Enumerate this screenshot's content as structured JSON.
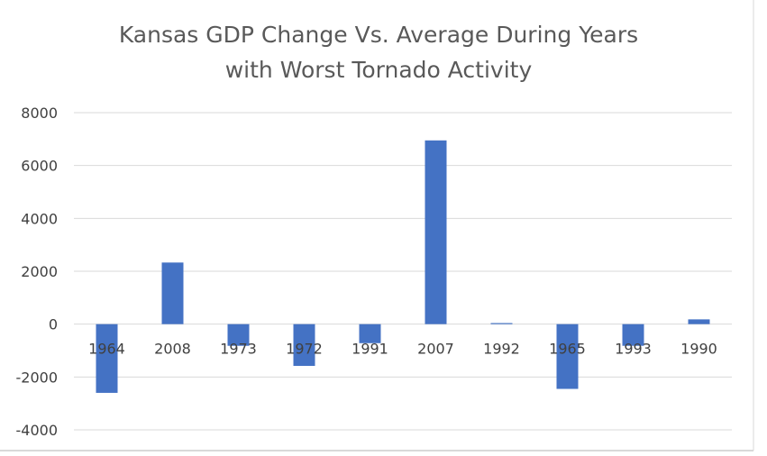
{
  "chart_data": {
    "type": "bar",
    "title_lines": [
      "Kansas GDP Change Vs. Average During Years",
      "with Worst Tornado Activity"
    ],
    "xlabel": "",
    "ylabel": "",
    "categories": [
      "1964",
      "2008",
      "1973",
      "1972",
      "1991",
      "2007",
      "1992",
      "1965",
      "1993",
      "1990"
    ],
    "values": [
      -2600,
      2330,
      -820,
      -1580,
      -720,
      6950,
      40,
      -2450,
      -820,
      180
    ],
    "ylim": [
      -4000,
      8000
    ],
    "yticks": [
      -4000,
      -2000,
      0,
      2000,
      4000,
      6000,
      8000
    ],
    "ytick_labels": [
      "-4000",
      "-2000",
      "0",
      "2000",
      "4000",
      "6000",
      "8000"
    ],
    "grid": true,
    "legend": "none",
    "bar_color": "#4472C4",
    "grid_color": "#D9D9D9"
  }
}
